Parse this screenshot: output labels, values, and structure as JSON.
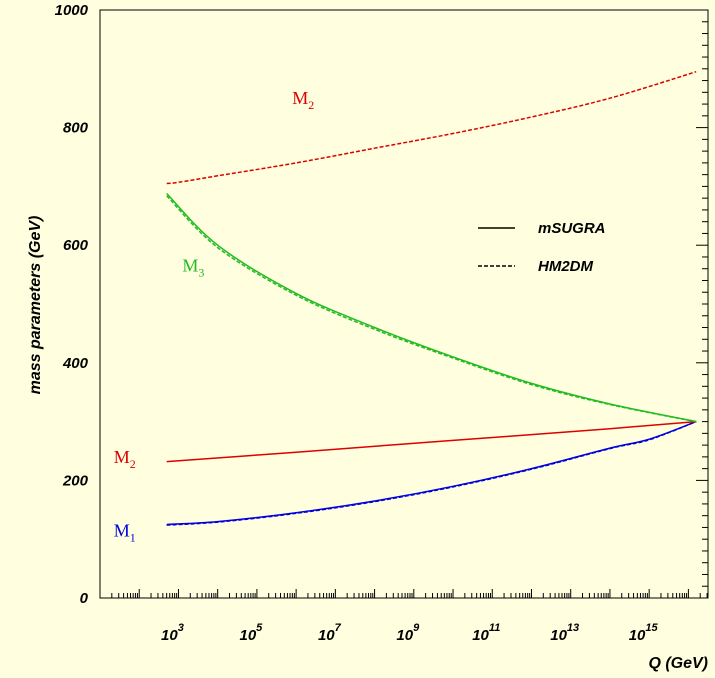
{
  "chart_data": {
    "type": "line",
    "xlabel": "Q (GeV)",
    "ylabel": "mass parameters (GeV)",
    "x_scale": "log",
    "xlim_log10": [
      1,
      16.5
    ],
    "ylim": [
      0,
      1000
    ],
    "y_ticks": [
      "0",
      "200",
      "400",
      "600",
      "800",
      "1000"
    ],
    "x_ticks": [
      {
        "base": "10",
        "exp": "3",
        "log10": 3
      },
      {
        "base": "10",
        "exp": "5",
        "log10": 5
      },
      {
        "base": "10",
        "exp": "7",
        "log10": 7
      },
      {
        "base": "10",
        "exp": "9",
        "log10": 9
      },
      {
        "base": "10",
        "exp": "11",
        "log10": 11
      },
      {
        "base": "10",
        "exp": "13",
        "log10": 13
      },
      {
        "base": "10",
        "exp": "15",
        "log10": 15
      }
    ],
    "legend": {
      "position": "right",
      "entries": [
        {
          "label": "mSUGRA",
          "style": "solid"
        },
        {
          "label": "HM2DM",
          "style": "dashed"
        }
      ]
    },
    "series": [
      {
        "label_main": "M",
        "label_sub": "1",
        "scheme": "mSUGRA",
        "style": "solid",
        "color": "#0000dd",
        "x_log10": [
          2.7,
          4,
          6,
          8,
          10,
          12,
          14,
          15,
          16.2
        ],
        "y": [
          125,
          130,
          145,
          165,
          190,
          220,
          255,
          270,
          300
        ]
      },
      {
        "label_main": "M",
        "label_sub": "1",
        "scheme": "HM2DM",
        "style": "dashed",
        "color": "#0000dd",
        "x_log10": [
          2.7,
          4,
          6,
          8,
          10,
          12,
          14,
          15,
          16.2
        ],
        "y": [
          124,
          129,
          144,
          164,
          189,
          219,
          254,
          269,
          300
        ]
      },
      {
        "label_main": "M",
        "label_sub": "2",
        "scheme": "mSUGRA",
        "style": "solid",
        "color": "#dd0000",
        "x_log10": [
          2.7,
          6,
          10,
          14,
          16.2
        ],
        "y": [
          232,
          248,
          268,
          288,
          300
        ]
      },
      {
        "label_main": "M",
        "label_sub": "2",
        "scheme": "HM2DM",
        "style": "dashed",
        "color": "#dd0000",
        "x_log10": [
          2.7,
          3,
          4,
          6,
          8,
          10,
          12,
          14,
          16.2
        ],
        "y": [
          705,
          707,
          718,
          740,
          765,
          790,
          818,
          850,
          895
        ]
      },
      {
        "label_main": "M",
        "label_sub": "3",
        "scheme": "mSUGRA",
        "style": "solid",
        "color": "#22bb22",
        "x_log10": [
          2.7,
          4,
          6,
          8,
          10,
          12,
          14,
          16.2
        ],
        "y": [
          688,
          600,
          518,
          460,
          410,
          365,
          330,
          300
        ]
      },
      {
        "label_main": "M",
        "label_sub": "3",
        "scheme": "HM2DM",
        "style": "dashed",
        "color": "#22bb22",
        "x_log10": [
          2.7,
          4,
          6,
          8,
          10,
          12,
          14,
          16.2
        ],
        "y": [
          684,
          596,
          515,
          457,
          408,
          363,
          329,
          300
        ]
      }
    ],
    "curve_labels": [
      {
        "main": "M",
        "sub": "2",
        "color": "#dd0000",
        "x_log10": 5.9,
        "y": 840
      },
      {
        "main": "M",
        "sub": "3",
        "color": "#22bb22",
        "x_log10": 3.1,
        "y": 555
      },
      {
        "main": "M",
        "sub": "2",
        "color": "#dd0000",
        "x_log10": 1.35,
        "y": 230
      },
      {
        "main": "M",
        "sub": "1",
        "color": "#0000dd",
        "x_log10": 1.35,
        "y": 105
      }
    ]
  }
}
